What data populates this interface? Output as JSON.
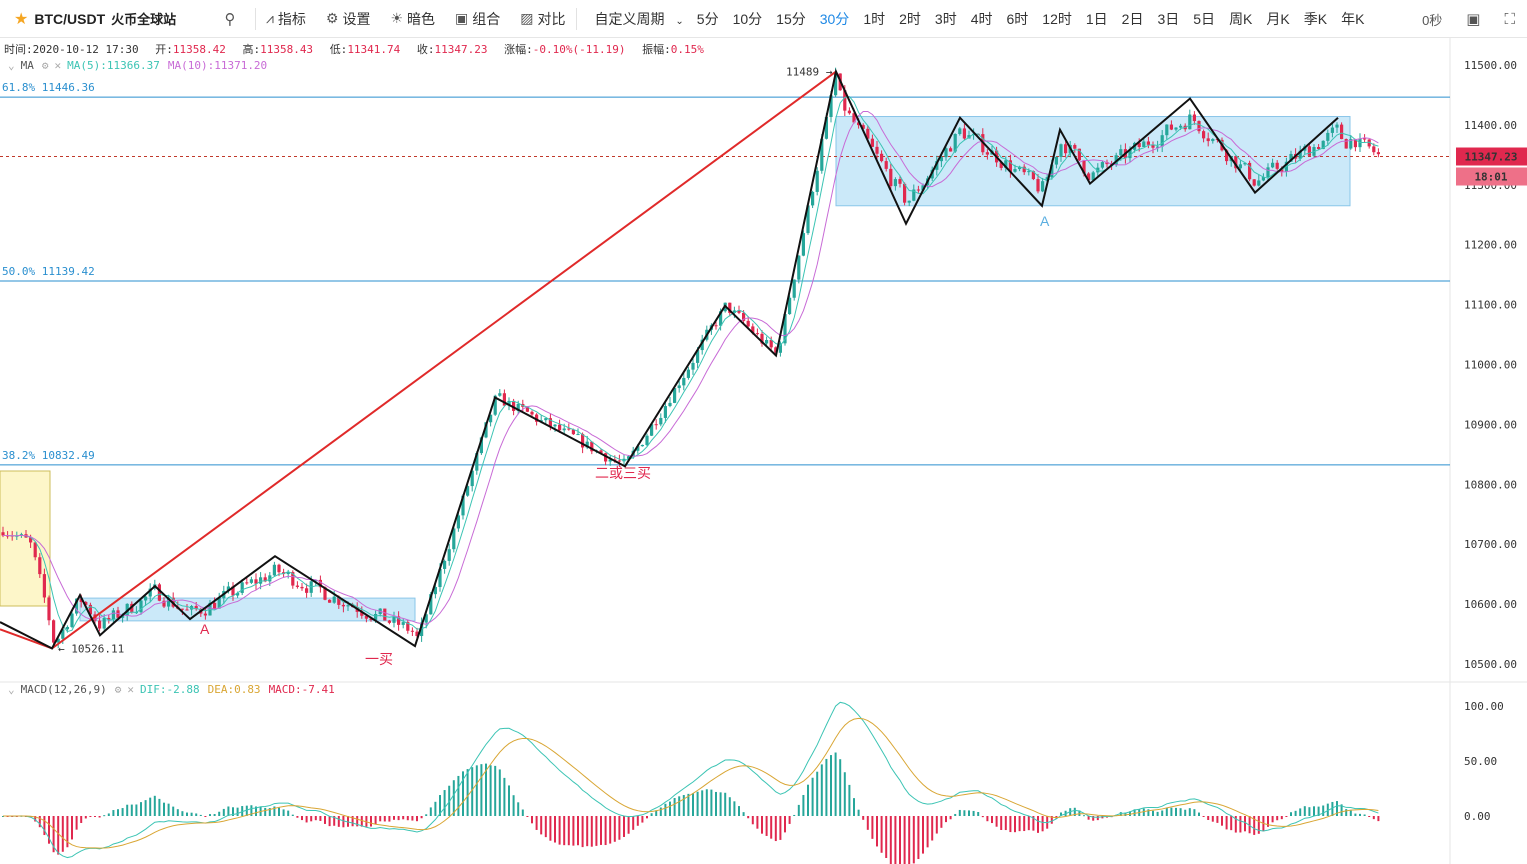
{
  "toolbar": {
    "symbol": "BTC/USDT",
    "exchange": "火币全球站",
    "buttons": [
      "指标",
      "设置",
      "暗色",
      "组合",
      "对比"
    ],
    "custom_period": "自定义周期",
    "periods": [
      "5分",
      "10分",
      "15分",
      "30分",
      "1时",
      "2时",
      "3时",
      "4时",
      "6时",
      "12时",
      "1日",
      "2日",
      "3日",
      "5日",
      "周K",
      "月K",
      "季K",
      "年K"
    ],
    "active_period": "30分",
    "timer_label": "0秒"
  },
  "info": {
    "time_label": "时间:",
    "time": "2020-10-12 17:30",
    "open_label": "开:",
    "open": "11358.42",
    "high_label": "高:",
    "high": "11358.43",
    "low_label": "低:",
    "low": "11341.74",
    "close_label": "收:",
    "close": "11347.23",
    "change_label": "涨幅:",
    "change": "-0.10%(-11.19)",
    "amp_label": "振幅:",
    "amp": "0.15%"
  },
  "ma_legend": {
    "name": "MA",
    "ma5": "MA(5):11366.37",
    "ma10": "MA(10):11371.20"
  },
  "macd_legend": {
    "name": "MACD(12,26,9)",
    "dif": "DIF:-2.88",
    "dea": "DEA:0.83",
    "macd": "MACD:-7.41"
  },
  "price_axis": [
    "11500.00",
    "11400.00",
    "11300.00",
    "11200.00",
    "11100.00",
    "11000.00",
    "10900.00",
    "10800.00",
    "10700.00",
    "10600.00",
    "10500.00"
  ],
  "macd_axis": [
    "100.00",
    "50.00",
    "0.00"
  ],
  "current_price": "11347.23",
  "countdown": "18:01",
  "fib_levels": [
    {
      "label": "61.8% 11446.36",
      "price": 11446.36
    },
    {
      "label": "50.0% 11139.42",
      "price": 11139.42
    },
    {
      "label": "38.2% 10832.49",
      "price": 10832.49
    }
  ],
  "annotations": {
    "high": "11489",
    "low": "10526.11",
    "buy1": "一买",
    "buy23": "二或三买",
    "a_low": "A",
    "a_high": "A"
  },
  "colors": {
    "up": "#26a69a",
    "down": "#e0284e",
    "ma5": "#3cc4b4",
    "ma10": "#c86bd6",
    "fib": "#2a8fcf",
    "box": "#b6e0f7",
    "trend": "#e02a2a",
    "dif": "#3cc4b4",
    "dea": "#d9a634"
  },
  "chart_data": {
    "type": "candlestick",
    "price_range": [
      10480,
      11520
    ],
    "macd_range": [
      -40,
      110
    ],
    "zigzag": [
      [
        0,
        10570
      ],
      [
        52,
        10526
      ],
      [
        80,
        10615
      ],
      [
        100,
        10548
      ],
      [
        155,
        10630
      ],
      [
        190,
        10575
      ],
      [
        275,
        10680
      ],
      [
        415,
        10530
      ],
      [
        495,
        10945
      ],
      [
        625,
        10830
      ],
      [
        725,
        11098
      ],
      [
        776,
        11015
      ],
      [
        836,
        11489
      ],
      [
        906,
        11235
      ],
      [
        960,
        11412
      ],
      [
        1042,
        11265
      ],
      [
        1060,
        11392
      ],
      [
        1090,
        11302
      ],
      [
        1190,
        11444
      ],
      [
        1255,
        11287
      ],
      [
        1338,
        11412
      ]
    ],
    "trendline": [
      [
        0,
        10558
      ],
      [
        52,
        10526
      ],
      [
        836,
        11489
      ]
    ]
  }
}
